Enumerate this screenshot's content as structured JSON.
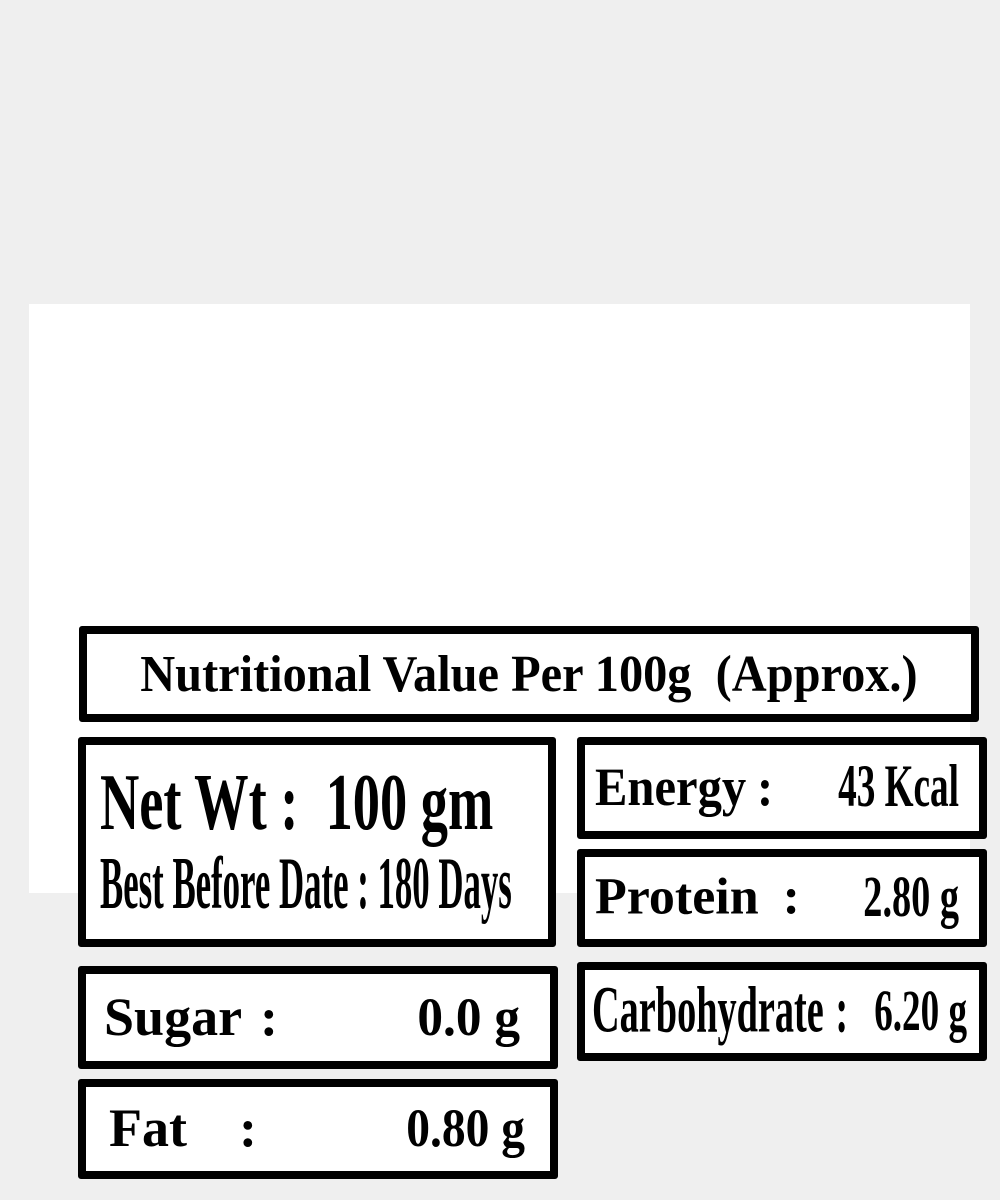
{
  "label": {
    "title": "Nutritional Value Per 100g  (Approx.)",
    "separator": ":",
    "net_weight": {
      "line1": "Net Wt :  100 gm",
      "line2": "Best Before Date : 180 Days"
    },
    "rows": {
      "sugar": {
        "label": "Sugar",
        "value": "0.0 g"
      },
      "fat": {
        "label": "Fat",
        "value": "0.80 g"
      },
      "energy": {
        "label": "Energy",
        "value": "43 Kcal"
      },
      "protein": {
        "label": "Protein",
        "value": "2.80 g"
      },
      "carbohydrate": {
        "label": "Carbohydrate",
        "value": "6.20 g"
      }
    },
    "colors": {
      "background": "#efefef",
      "panel": "#ffffff",
      "border": "#000000",
      "text": "#000000"
    }
  }
}
